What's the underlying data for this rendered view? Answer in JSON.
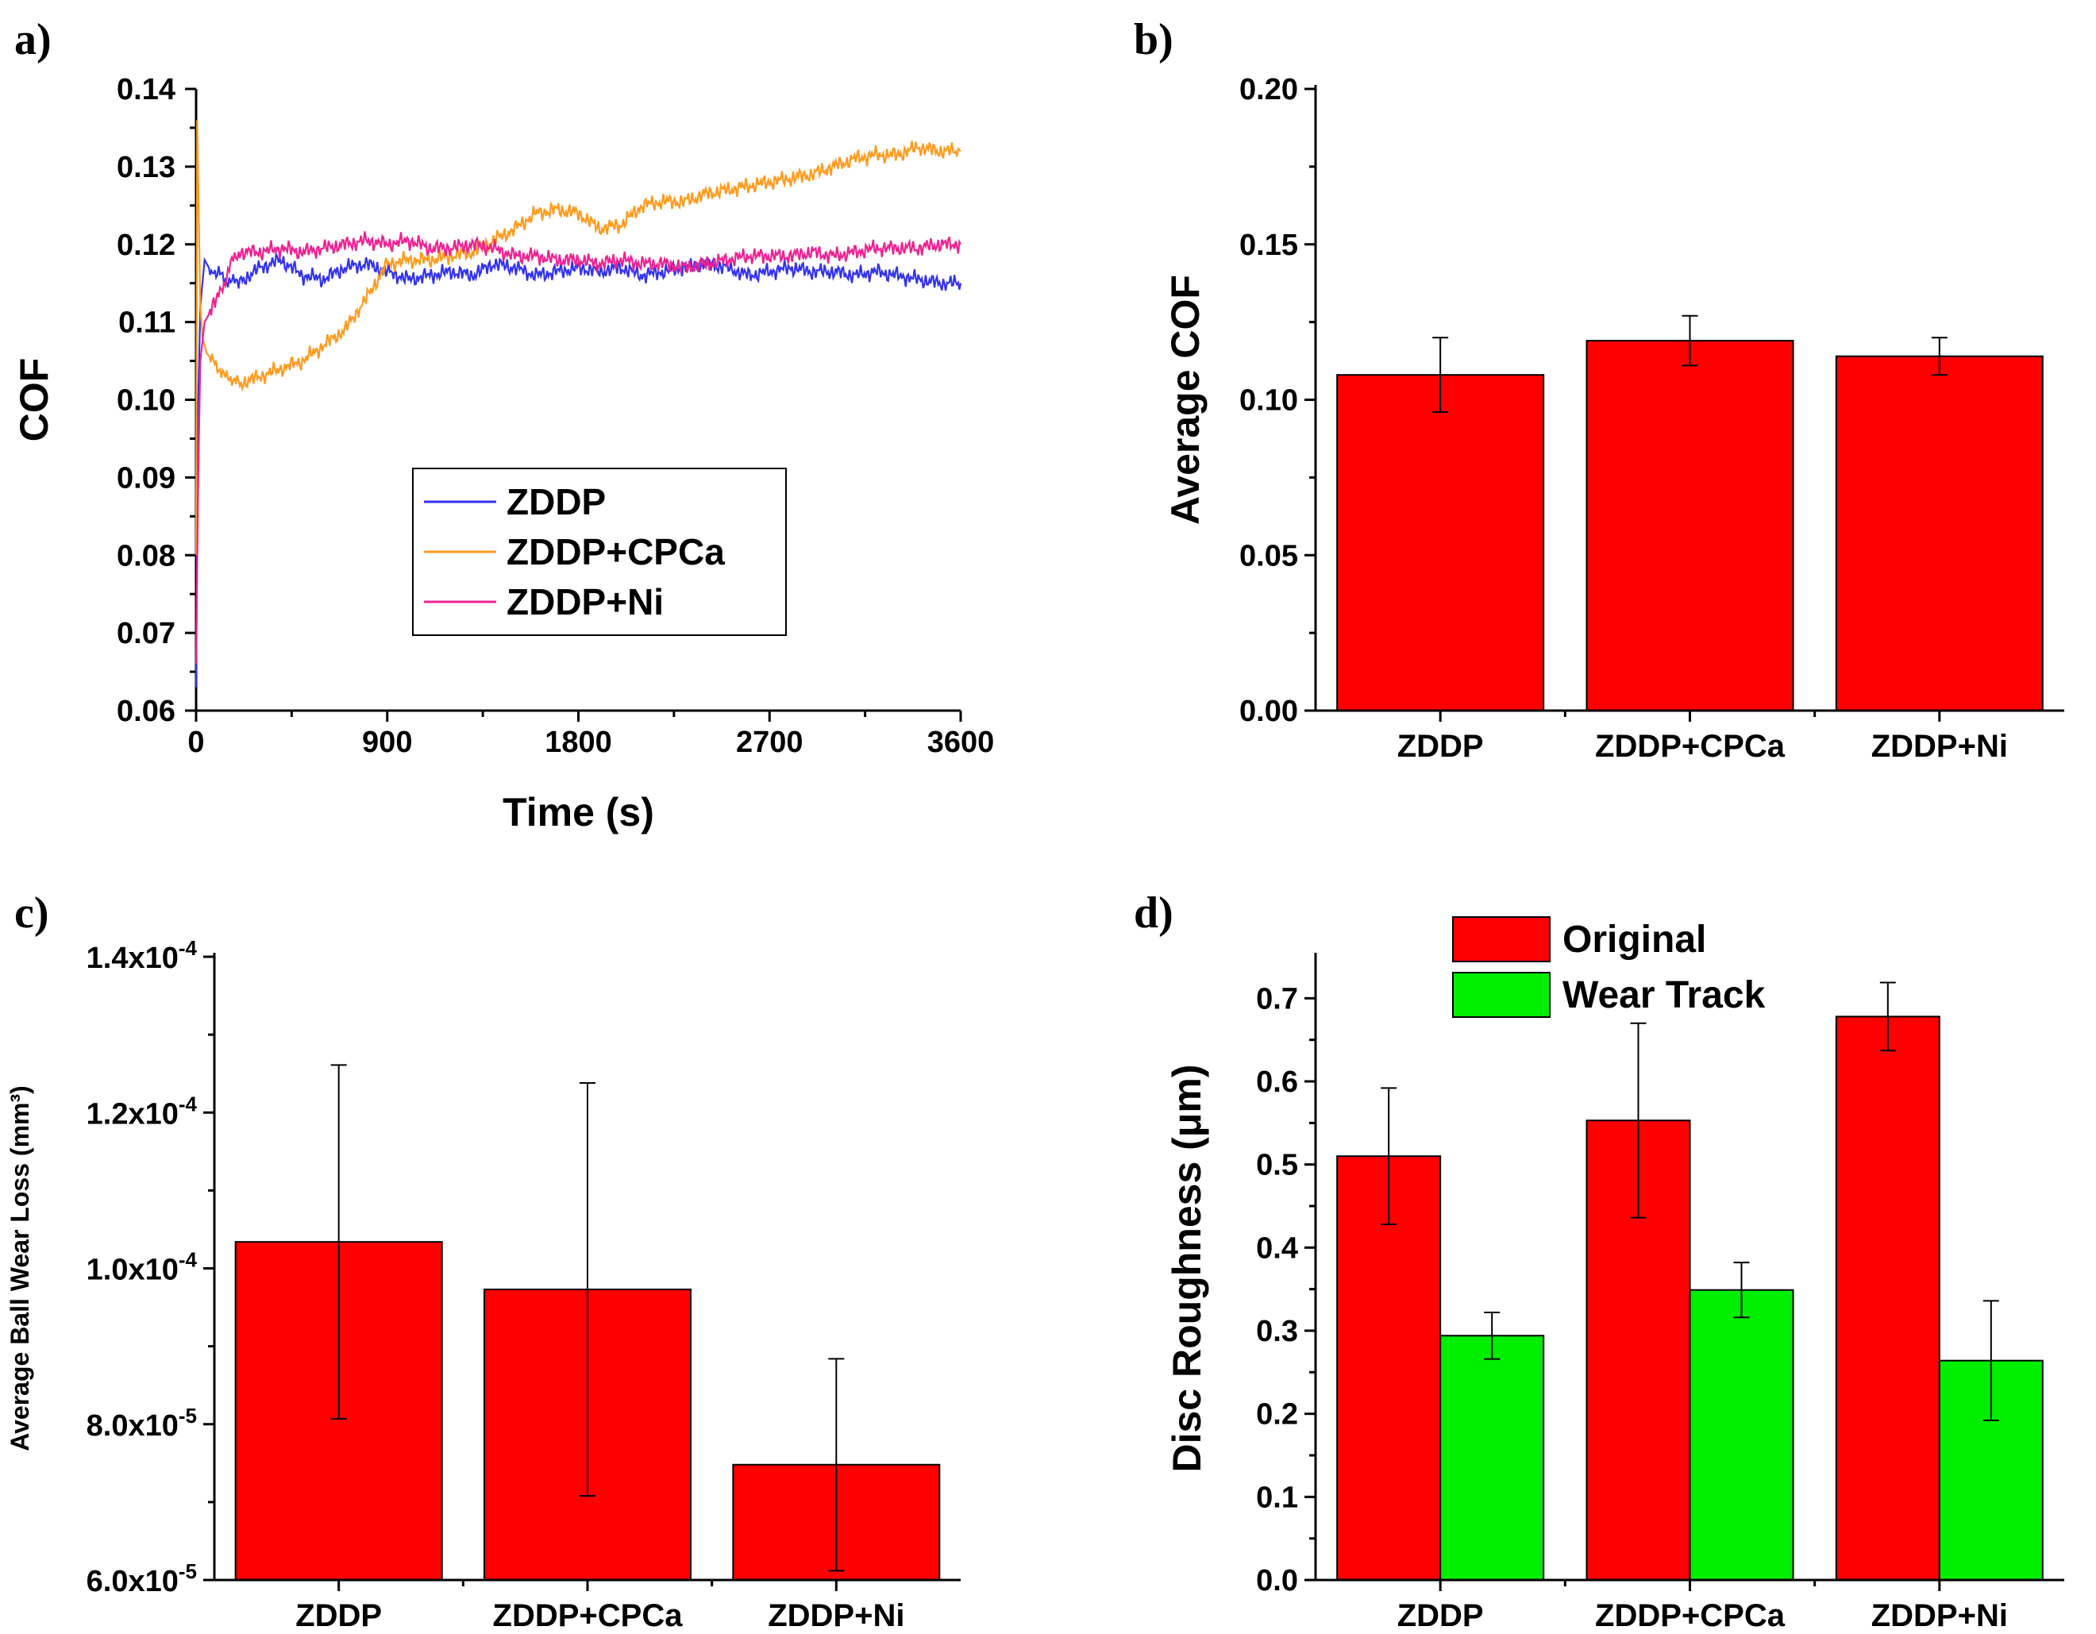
{
  "panels": {
    "a": {
      "label": "a)",
      "chart_data": {
        "type": "line",
        "xlabel": "Time (s)",
        "ylabel": "COF",
        "xlim": [
          0,
          3600
        ],
        "ylim": [
          0.06,
          0.14
        ],
        "xticks": [
          "0",
          "900",
          "1800",
          "2700",
          "3600"
        ],
        "yticks": [
          "0.06",
          "0.07",
          "0.08",
          "0.09",
          "0.10",
          "0.11",
          "0.12",
          "0.13",
          "0.14"
        ],
        "legend_position": "center",
        "series": [
          {
            "name": "ZDDP",
            "color": "#3333ee",
            "x": [
              0,
              10,
              20,
              40,
              60,
              100,
              150,
              200,
              300,
              400,
              500,
              600,
              700,
              800,
              900,
              1000,
              1100,
              1200,
              1300,
              1400,
              1500,
              1600,
              1700,
              1800,
              1900,
              2000,
              2100,
              2200,
              2300,
              2400,
              2500,
              2600,
              2700,
              2800,
              2900,
              3000,
              3100,
              3200,
              3300,
              3400,
              3500,
              3600
            ],
            "y": [
              0.063,
              0.1,
              0.112,
              0.118,
              0.117,
              0.116,
              0.1155,
              0.115,
              0.117,
              0.118,
              0.116,
              0.1155,
              0.117,
              0.1175,
              0.1165,
              0.1155,
              0.116,
              0.1165,
              0.116,
              0.1175,
              0.117,
              0.116,
              0.1165,
              0.117,
              0.1165,
              0.117,
              0.116,
              0.1165,
              0.117,
              0.1175,
              0.117,
              0.116,
              0.1165,
              0.117,
              0.1165,
              0.1165,
              0.116,
              0.1165,
              0.116,
              0.1155,
              0.115,
              0.115
            ]
          },
          {
            "name": "ZDDP+CPCa",
            "color": "#ff9b1e",
            "x": [
              0,
              5,
              10,
              20,
              30,
              50,
              100,
              150,
              200,
              300,
              400,
              500,
              600,
              700,
              800,
              900,
              1000,
              1100,
              1200,
              1300,
              1400,
              1500,
              1600,
              1700,
              1800,
              1900,
              2000,
              2100,
              2200,
              2300,
              2400,
              2500,
              2600,
              2700,
              2800,
              2900,
              3000,
              3100,
              3200,
              3300,
              3400,
              3500,
              3600
            ],
            "y": [
              0.08,
              0.136,
              0.128,
              0.112,
              0.108,
              0.106,
              0.104,
              0.103,
              0.102,
              0.103,
              0.104,
              0.105,
              0.107,
              0.109,
              0.113,
              0.1175,
              0.118,
              0.118,
              0.1185,
              0.119,
              0.1205,
              0.122,
              0.124,
              0.1245,
              0.124,
              0.122,
              0.1225,
              0.125,
              0.1255,
              0.1255,
              0.1265,
              0.127,
              0.1275,
              0.128,
              0.1285,
              0.129,
              0.13,
              0.131,
              0.1315,
              0.1315,
              0.1325,
              0.132,
              0.132
            ]
          },
          {
            "name": "ZDDP+Ni",
            "color": "#ee2290",
            "x": [
              0,
              10,
              20,
              40,
              60,
              100,
              150,
              200,
              300,
              400,
              500,
              600,
              700,
              800,
              900,
              1000,
              1100,
              1200,
              1300,
              1400,
              1500,
              1600,
              1700,
              1800,
              1900,
              2000,
              2100,
              2200,
              2300,
              2400,
              2500,
              2600,
              2700,
              2800,
              2900,
              3000,
              3100,
              3200,
              3300,
              3400,
              3500,
              3600
            ],
            "y": [
              0.066,
              0.09,
              0.105,
              0.11,
              0.111,
              0.113,
              0.1165,
              0.119,
              0.119,
              0.1195,
              0.119,
              0.1195,
              0.12,
              0.1205,
              0.12,
              0.1205,
              0.1195,
              0.1195,
              0.12,
              0.1195,
              0.1185,
              0.1185,
              0.118,
              0.118,
              0.1175,
              0.118,
              0.1175,
              0.1175,
              0.117,
              0.1175,
              0.118,
              0.1185,
              0.1185,
              0.1185,
              0.119,
              0.1185,
              0.119,
              0.1195,
              0.1195,
              0.1195,
              0.12,
              0.12
            ]
          }
        ]
      }
    },
    "b": {
      "label": "b)",
      "chart_data": {
        "type": "bar",
        "ylabel": "Average COF",
        "categories": [
          "ZDDP",
          "ZDDP+CPCa",
          "ZDDP+Ni"
        ],
        "values": [
          0.108,
          0.119,
          0.114
        ],
        "errors": [
          0.012,
          0.008,
          0.006
        ],
        "ylim": [
          0.0,
          0.2
        ],
        "yticks": [
          "0.00",
          "0.05",
          "0.10",
          "0.15",
          "0.20"
        ],
        "bar_color": "#ff0000"
      }
    },
    "c": {
      "label": "c)",
      "chart_data": {
        "type": "bar",
        "ylabel": "Average Ball Wear Loss (mm³)",
        "categories": [
          "ZDDP",
          "ZDDP+CPCa",
          "ZDDP+Ni"
        ],
        "values": [
          0.0001034,
          9.73e-05,
          7.48e-05
        ],
        "errors": [
          2.27e-05,
          2.65e-05,
          1.36e-05
        ],
        "ylim": [
          6e-05,
          0.00014
        ],
        "yticks": [
          {
            "mant": "6.0x10",
            "exp": "-5"
          },
          {
            "mant": "8.0x10",
            "exp": "-5"
          },
          {
            "mant": "1.0x10",
            "exp": "-4"
          },
          {
            "mant": "1.2x10",
            "exp": "-4"
          },
          {
            "mant": "1.4x10",
            "exp": "-4"
          }
        ],
        "bar_color": "#ff0000"
      }
    },
    "d": {
      "label": "d)",
      "chart_data": {
        "type": "bar",
        "ylabel": "Disc Roughness (μm)",
        "categories": [
          "ZDDP",
          "ZDDP+CPCa",
          "ZDDP+Ni"
        ],
        "series": [
          {
            "name": "Original",
            "color": "#ff0000",
            "values": [
              0.51,
              0.553,
              0.678
            ],
            "errors": [
              0.082,
              0.117,
              0.041
            ]
          },
          {
            "name": "Wear Track",
            "color": "#00ee00",
            "values": [
              0.294,
              0.349,
              0.264
            ],
            "errors": [
              0.028,
              0.033,
              0.072
            ]
          }
        ],
        "ylim": [
          0.0,
          0.75
        ],
        "yticks": [
          "0.0",
          "0.1",
          "0.2",
          "0.3",
          "0.4",
          "0.5",
          "0.6",
          "0.7"
        ],
        "legend_position": "top-left"
      }
    }
  }
}
